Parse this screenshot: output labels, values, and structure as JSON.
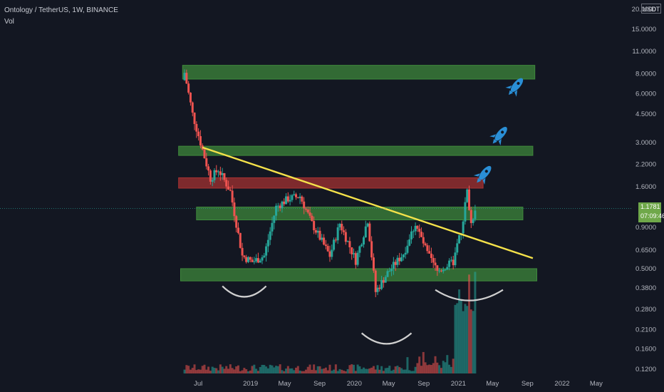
{
  "header": {
    "symbol_line": "Ontology / TetherUS, 1W, BINANCE",
    "volume_label": "Vol"
  },
  "price_scale": {
    "currency": "USDT",
    "last_price": "1.1781",
    "countdown": "07:09:46"
  },
  "colors": {
    "background": "#131722",
    "up": "#26a69a",
    "down": "#ef5350",
    "support_zone": "#3f8a3c",
    "resistance_zone": "#a83232",
    "trendline": "#f5e24a",
    "arc": "#d0d0d0",
    "rocket": "#2a8fd6"
  },
  "chart_data": {
    "type": "candlestick",
    "title": "Ontology / TetherUS, 1W, BINANCE",
    "y_scale": "log",
    "ylim": [
      0.115,
      21
    ],
    "y_ticks": [
      "20.0000",
      "15.0000",
      "11.0000",
      "8.0000",
      "6.0000",
      "4.5000",
      "3.0000",
      "2.2000",
      "1.6000",
      "1.1781",
      "0.9000",
      "0.6500",
      "0.5000",
      "0.3800",
      "0.2800",
      "0.2100",
      "0.1600",
      "0.1200"
    ],
    "x_ticks": [
      "Jul",
      "2019",
      "May",
      "Sep",
      "2020",
      "May",
      "Sep",
      "2021",
      "May",
      "Sep",
      "2022",
      "May"
    ],
    "price_anchors": [
      {
        "date": "2018-05-14",
        "price": 8.1
      },
      {
        "date": "2018-06-11",
        "price": 4.5
      },
      {
        "date": "2018-07-09",
        "price": 3.0
      },
      {
        "date": "2018-08-13",
        "price": 1.8
      },
      {
        "date": "2018-09-10",
        "price": 2.05
      },
      {
        "date": "2018-10-22",
        "price": 1.5
      },
      {
        "date": "2018-12-03",
        "price": 0.6
      },
      {
        "date": "2019-01-07",
        "price": 0.55
      },
      {
        "date": "2019-02-18",
        "price": 0.6
      },
      {
        "date": "2019-04-01",
        "price": 1.2
      },
      {
        "date": "2019-05-13",
        "price": 1.35
      },
      {
        "date": "2019-06-24",
        "price": 1.4
      },
      {
        "date": "2019-08-05",
        "price": 0.95
      },
      {
        "date": "2019-10-07",
        "price": 0.6
      },
      {
        "date": "2019-11-11",
        "price": 0.95
      },
      {
        "date": "2020-01-06",
        "price": 0.56
      },
      {
        "date": "2020-02-17",
        "price": 1.0
      },
      {
        "date": "2020-03-16",
        "price": 0.36
      },
      {
        "date": "2020-04-27",
        "price": 0.47
      },
      {
        "date": "2020-06-22",
        "price": 0.62
      },
      {
        "date": "2020-08-03",
        "price": 0.95
      },
      {
        "date": "2020-09-14",
        "price": 0.62
      },
      {
        "date": "2020-10-19",
        "price": 0.48
      },
      {
        "date": "2020-12-14",
        "price": 0.55
      },
      {
        "date": "2021-01-11",
        "price": 0.85
      },
      {
        "date": "2021-02-01",
        "price": 1.5
      },
      {
        "date": "2021-02-15",
        "price": 0.95
      },
      {
        "date": "2021-03-01",
        "price": 1.18
      }
    ],
    "zones": [
      {
        "kind": "support",
        "start": "2018-05-07",
        "end": "2021-09-27",
        "low": 7.4,
        "high": 9.0
      },
      {
        "kind": "support",
        "start": "2018-04-23",
        "end": "2021-09-20",
        "low": 2.5,
        "high": 2.85
      },
      {
        "kind": "resistance",
        "start": "2018-04-23",
        "end": "2021-03-29",
        "low": 1.57,
        "high": 1.82
      },
      {
        "kind": "support",
        "start": "2018-06-25",
        "end": "2021-08-16",
        "low": 1.0,
        "high": 1.2
      },
      {
        "kind": "support",
        "start": "2018-04-30",
        "end": "2021-10-04",
        "low": 0.42,
        "high": 0.5
      }
    ],
    "trendline": {
      "start_date": "2018-07-16",
      "start_price": 2.8,
      "end_date": "2021-09-20",
      "end_price": 0.58
    },
    "arcs": [
      {
        "start": "2018-09-24",
        "end": "2019-02-25",
        "price": 0.39
      },
      {
        "start": "2020-01-27",
        "end": "2020-07-20",
        "price": 0.2
      },
      {
        "start": "2020-10-12",
        "end": "2021-06-07",
        "price": 0.37
      }
    ],
    "rockets": 3
  }
}
